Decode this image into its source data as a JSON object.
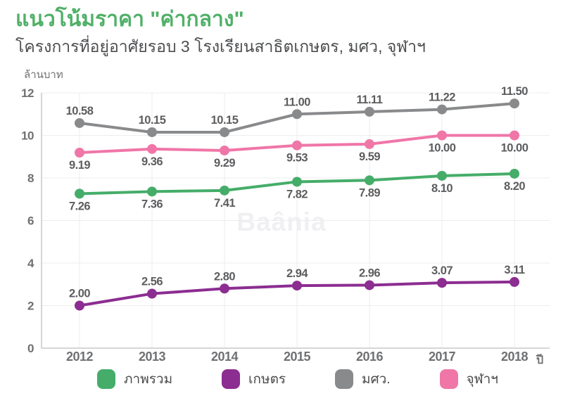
{
  "header": {
    "title": "แนวโน้มราคา \"ค่ากลาง\"",
    "subtitle": "โครงการที่อยู่อาศัยรอบ 3 โรงเรียนสาธิตเกษตร, มศว, จุฬาฯ"
  },
  "watermark": "Baânia",
  "colors": {
    "title_green": "#50b068",
    "subtitle_gray": "#4c4e50",
    "grid": "#ededef",
    "axis": "#c9c9cb",
    "data_label": "#5c5d5f",
    "tick_label": "#6f7072",
    "watermark": "#f0f0f3"
  },
  "chart_data": {
    "type": "line",
    "title": "แนวโน้มราคา \"ค่ากลาง\"",
    "subtitle": "โครงการที่อยู่อาศัยรอบ 3 โรงเรียนสาธิตเกษตร, มศว, จุฬาฯ",
    "x": [
      "2012",
      "2013",
      "2014",
      "2015",
      "2016",
      "2017",
      "2018"
    ],
    "xlabel": "ปี",
    "ylabel": "ล้านบาท",
    "ylim": [
      0,
      12
    ],
    "ytick_step": 2,
    "grid": true,
    "legend_position": "bottom",
    "point_labels": true,
    "series": [
      {
        "name": "ภาพรวม",
        "color": "#45ad69",
        "label_position": "below",
        "values": [
          7.26,
          7.36,
          7.41,
          7.82,
          7.89,
          8.1,
          8.2
        ]
      },
      {
        "name": "เกษตร",
        "color": "#8c2d91",
        "label_position": "above",
        "values": [
          2.0,
          2.56,
          2.8,
          2.94,
          2.96,
          3.07,
          3.11
        ]
      },
      {
        "name": "มศว.",
        "color": "#898a8c",
        "label_position": "above",
        "values": [
          10.58,
          10.15,
          10.15,
          11.0,
          11.11,
          11.22,
          11.5
        ]
      },
      {
        "name": "จุฬาฯ",
        "color": "#f076a8",
        "label_position": "below",
        "values": [
          9.19,
          9.36,
          9.29,
          9.53,
          9.59,
          10.0,
          10.0
        ]
      }
    ]
  }
}
